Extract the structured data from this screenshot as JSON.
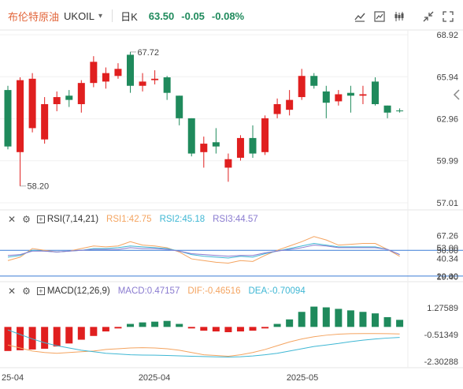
{
  "header": {
    "name": "布伦特原油",
    "code": "UKOIL",
    "period": "日K",
    "price": "63.50",
    "change": "-0.05",
    "change_pct": "-0.08%"
  },
  "icons": [
    "indicator-icon",
    "compare-icon",
    "candle-type-icon",
    "shrink-icon",
    "fullscreen-icon",
    "settings-gear-icon",
    "settings-gear-icon",
    "collapse-right-icon"
  ],
  "colors": {
    "up": "#e01f1f",
    "down": "#1f8a5c",
    "rsi1": "#f4a460",
    "rsi2": "#3fb7d4",
    "rsi3": "#8a7bd0",
    "dif": "#f4a460",
    "dea": "#3fb7d4",
    "ref_line": "#3a7bd5"
  },
  "rsi": {
    "label": "RSI(7,14,21)",
    "rsi1": "RSI1:42.75",
    "rsi2": "RSI2:45.18",
    "rsi3": "RSI3:44.57"
  },
  "macd": {
    "label": "MACD(12,26,9)",
    "macd": "MACD:0.47157",
    "dif": "DIF:-0.46516",
    "dea": "DEA:-0.70094"
  },
  "price_annotations": {
    "high": "67.72",
    "low": "58.20"
  },
  "x_labels": [
    "25-04",
    "2025-04",
    "2025-05"
  ],
  "chart_data": [
    {
      "type": "candlestick",
      "title": "布伦特原油 UKOIL 日K",
      "y_ticks": [
        "68.92",
        "65.94",
        "62.96",
        "59.99",
        "57.01"
      ],
      "ylim": [
        57.01,
        68.92
      ],
      "candles": [
        {
          "o": 65.0,
          "c": 61.0,
          "h": 65.3,
          "l": 60.8
        },
        {
          "o": 60.6,
          "c": 65.7,
          "h": 65.9,
          "l": 58.2
        },
        {
          "o": 62.3,
          "c": 65.8,
          "h": 66.2,
          "l": 62.0
        },
        {
          "o": 61.5,
          "c": 64.0,
          "h": 64.5,
          "l": 61.2
        },
        {
          "o": 64.0,
          "c": 64.5,
          "h": 64.9,
          "l": 63.5
        },
        {
          "o": 64.6,
          "c": 64.3,
          "h": 65.0,
          "l": 63.8
        },
        {
          "o": 64.0,
          "c": 65.5,
          "h": 65.7,
          "l": 63.4
        },
        {
          "o": 65.5,
          "c": 67.0,
          "h": 67.4,
          "l": 65.2
        },
        {
          "o": 65.6,
          "c": 66.2,
          "h": 66.6,
          "l": 65.1
        },
        {
          "o": 66.0,
          "c": 66.5,
          "h": 66.9,
          "l": 65.8
        },
        {
          "o": 67.5,
          "c": 65.3,
          "h": 67.7,
          "l": 64.8
        },
        {
          "o": 65.3,
          "c": 65.6,
          "h": 66.2,
          "l": 64.9
        },
        {
          "o": 65.7,
          "c": 65.8,
          "h": 66.4,
          "l": 65.4
        },
        {
          "o": 65.9,
          "c": 64.8,
          "h": 66.0,
          "l": 64.3
        },
        {
          "o": 64.6,
          "c": 63.0,
          "h": 64.6,
          "l": 62.5
        },
        {
          "o": 63.0,
          "c": 60.5,
          "h": 63.0,
          "l": 60.3
        },
        {
          "o": 60.6,
          "c": 61.2,
          "h": 61.7,
          "l": 59.5
        },
        {
          "o": 61.3,
          "c": 61.0,
          "h": 62.3,
          "l": 60.5
        },
        {
          "o": 59.5,
          "c": 60.1,
          "h": 60.5,
          "l": 58.5
        },
        {
          "o": 60.2,
          "c": 61.6,
          "h": 61.8,
          "l": 60.0
        },
        {
          "o": 61.6,
          "c": 60.5,
          "h": 62.5,
          "l": 60.2
        },
        {
          "o": 60.6,
          "c": 63.0,
          "h": 63.2,
          "l": 60.4
        },
        {
          "o": 63.3,
          "c": 64.0,
          "h": 64.4,
          "l": 63.0
        },
        {
          "o": 63.6,
          "c": 64.3,
          "h": 65.0,
          "l": 63.2
        },
        {
          "o": 64.5,
          "c": 66.0,
          "h": 66.5,
          "l": 64.3
        },
        {
          "o": 66.0,
          "c": 65.3,
          "h": 66.2,
          "l": 65.1
        },
        {
          "o": 64.9,
          "c": 64.1,
          "h": 65.3,
          "l": 63.0
        },
        {
          "o": 64.2,
          "c": 64.7,
          "h": 65.0,
          "l": 63.9
        },
        {
          "o": 64.8,
          "c": 64.6,
          "h": 65.3,
          "l": 63.4
        },
        {
          "o": 64.6,
          "c": 64.7,
          "h": 65.3,
          "l": 64.0
        },
        {
          "o": 65.6,
          "c": 64.0,
          "h": 65.9,
          "l": 63.9
        },
        {
          "o": 63.9,
          "c": 63.4,
          "h": 63.9,
          "l": 63.0
        },
        {
          "o": 63.55,
          "c": 63.5,
          "h": 63.7,
          "l": 63.4
        }
      ]
    },
    {
      "type": "line",
      "title": "RSI(7,14,21)",
      "y_ticks": [
        "67.26",
        "53.00",
        "50.00",
        "40.34",
        "20.00",
        "19.40"
      ],
      "ylim": [
        18,
        75
      ],
      "series": [
        {
          "name": "RSI1",
          "values": [
            38,
            42,
            52,
            50,
            48,
            49,
            52,
            55,
            54,
            55,
            60,
            56,
            55,
            53,
            48,
            40,
            38,
            36,
            35,
            38,
            37,
            44,
            50,
            55,
            60,
            66,
            62,
            56,
            57,
            58,
            58,
            51,
            43
          ]
        },
        {
          "name": "RSI2",
          "values": [
            42,
            44,
            50,
            49,
            48,
            49,
            50,
            52,
            52,
            53,
            55,
            54,
            53,
            52,
            49,
            45,
            43,
            42,
            41,
            43,
            42,
            46,
            49,
            52,
            55,
            58,
            56,
            54,
            54,
            54,
            54,
            51,
            45
          ]
        },
        {
          "name": "RSI3",
          "values": [
            44,
            45,
            49,
            49,
            48,
            49,
            50,
            51,
            51,
            51,
            53,
            52,
            52,
            51,
            49,
            46,
            45,
            44,
            43,
            44,
            44,
            47,
            49,
            51,
            53,
            56,
            55,
            53,
            53,
            53,
            53,
            51,
            45
          ]
        }
      ]
    },
    {
      "type": "bar",
      "title": "MACD(12,26,9)",
      "y_ticks": [
        "1.27589",
        "-0.51349",
        "-2.30288"
      ],
      "ylim": [
        -2.5,
        1.8
      ],
      "macd_bars": [
        -1.6,
        -1.55,
        -1.5,
        -1.45,
        -1.3,
        -1.1,
        -0.85,
        -0.6,
        -0.3,
        -0.1,
        0.2,
        0.3,
        0.35,
        0.4,
        0.2,
        -0.1,
        -0.25,
        -0.3,
        -0.35,
        -0.3,
        -0.25,
        -0.1,
        0.2,
        0.5,
        1.0,
        1.35,
        1.3,
        1.2,
        1.1,
        1.0,
        0.9,
        0.65,
        0.47
      ],
      "series": [
        {
          "name": "DIF",
          "values": [
            -1.2,
            -1.4,
            -1.6,
            -1.7,
            -1.75,
            -1.7,
            -1.65,
            -1.6,
            -1.5,
            -1.45,
            -1.4,
            -1.38,
            -1.4,
            -1.45,
            -1.55,
            -1.7,
            -1.85,
            -1.9,
            -1.95,
            -1.85,
            -1.7,
            -1.5,
            -1.25,
            -1.0,
            -0.8,
            -0.65,
            -0.55,
            -0.48,
            -0.45,
            -0.44,
            -0.44,
            -0.45,
            -0.47
          ]
        },
        {
          "name": "DEA",
          "values": [
            -0.2,
            -0.5,
            -0.8,
            -1.05,
            -1.25,
            -1.4,
            -1.55,
            -1.65,
            -1.75,
            -1.8,
            -1.85,
            -1.87,
            -1.88,
            -1.9,
            -1.92,
            -1.95,
            -1.97,
            -1.99,
            -2.0,
            -1.98,
            -1.93,
            -1.85,
            -1.75,
            -1.6,
            -1.45,
            -1.3,
            -1.2,
            -1.1,
            -0.98,
            -0.88,
            -0.8,
            -0.74,
            -0.7
          ]
        }
      ]
    }
  ]
}
